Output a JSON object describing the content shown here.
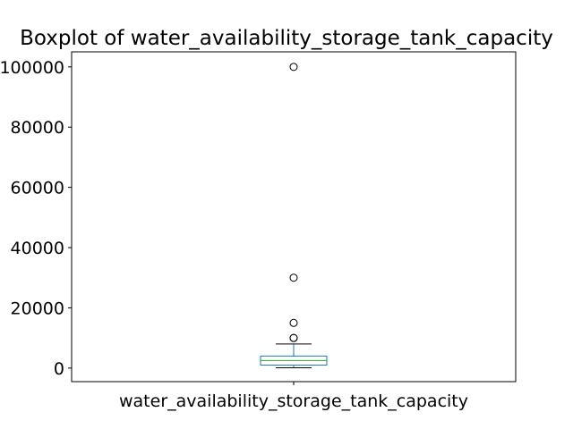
{
  "chart_data": {
    "type": "box",
    "title": "Boxplot of water_availability_storage_tank_capacity",
    "categories": [
      "water_availability_storage_tank_capacity"
    ],
    "ylim": [
      -4500,
      105000
    ],
    "yticks": [
      0,
      20000,
      40000,
      60000,
      80000,
      100000
    ],
    "ytick_labels": [
      "0",
      "20000",
      "40000",
      "60000",
      "80000",
      "100000"
    ],
    "grid": false,
    "boxes": [
      {
        "name": "water_availability_storage_tank_capacity",
        "whisker_low": 100,
        "q1": 1000,
        "median": 2500,
        "q3": 4000,
        "whisker_high": 8000,
        "outliers": [
          10000,
          10000,
          15000,
          30000,
          100000
        ]
      }
    ],
    "colors": {
      "box": "#1f77b4",
      "median": "#2ca02c",
      "whisker": "#000000",
      "outlier": "#000000"
    }
  }
}
